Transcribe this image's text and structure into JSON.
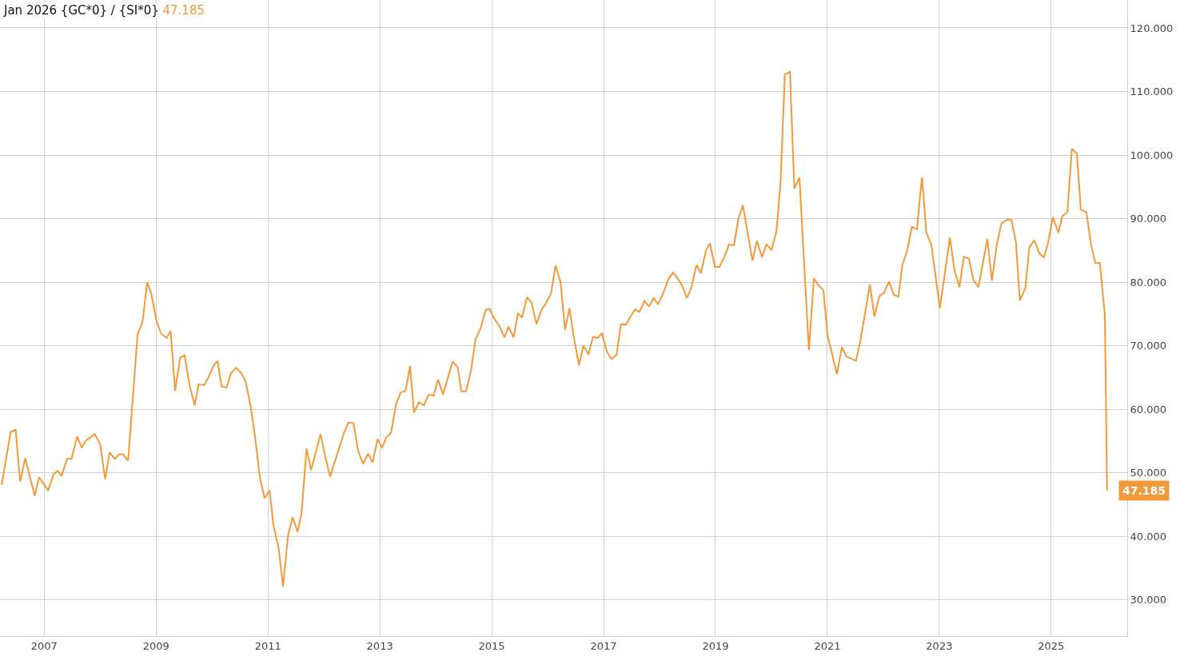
{
  "chart_data": {
    "type": "line",
    "title": "Jan 2026 {GC*0} / {SI*0}",
    "annotations": [
      "47.185",
      {
        "text": "47.185",
        "x": 2026.0,
        "y": 47.185
      }
    ],
    "xlim": [
      2006.21,
      2026.36
    ],
    "xticks": [
      2007,
      2009,
      2011,
      2013,
      2015,
      2017,
      2019,
      2021,
      2023,
      2025
    ],
    "ylim": [
      24.3,
      124.4
    ],
    "yticks": [
      {
        "value": 30,
        "label": "30.000"
      },
      {
        "value": 40,
        "label": "40.000"
      },
      {
        "value": 50,
        "label": "50.000"
      },
      {
        "value": 60,
        "label": "60.000"
      },
      {
        "value": 70,
        "label": "70.000"
      },
      {
        "value": 80,
        "label": "80.000"
      },
      {
        "value": 90,
        "label": "90.000"
      },
      {
        "value": 100,
        "label": "100.000"
      },
      {
        "value": 110,
        "label": "110.000"
      },
      {
        "value": 120,
        "label": "120.000"
      }
    ],
    "grid": true,
    "marker": "none",
    "line_style": "solid",
    "series": [
      {
        "color": "#f29a3a",
        "x": [
          2006.24,
          2006.4,
          2006.49,
          2006.57,
          2006.66,
          2006.83,
          2006.91,
          2007.07,
          2007.17,
          2007.24,
          2007.31,
          2007.41,
          2007.49,
          2007.59,
          2007.67,
          2007.74,
          2007.9,
          2008.0,
          2008.09,
          2008.17,
          2008.26,
          2008.34,
          2008.41,
          2008.5,
          2008.67,
          2008.76,
          2008.84,
          2008.91,
          2009.01,
          2009.09,
          2009.19,
          2009.26,
          2009.34,
          2009.43,
          2009.51,
          2009.6,
          2009.69,
          2009.76,
          2009.86,
          2009.93,
          2010.03,
          2010.1,
          2010.17,
          2010.26,
          2010.34,
          2010.43,
          2010.53,
          2010.6,
          2010.69,
          2010.77,
          2010.86,
          2010.94,
          2011.03,
          2011.1,
          2011.19,
          2011.27,
          2011.36,
          2011.44,
          2011.53,
          2011.6,
          2011.69,
          2011.77,
          2011.94,
          2012.03,
          2012.11,
          2012.36,
          2012.44,
          2012.53,
          2012.61,
          2012.7,
          2012.79,
          2012.87,
          2012.96,
          2013.04,
          2013.11,
          2013.2,
          2013.29,
          2013.37,
          2013.46,
          2013.54,
          2013.61,
          2013.7,
          2013.79,
          2013.87,
          2013.96,
          2014.04,
          2014.13,
          2014.3,
          2014.39,
          2014.46,
          2014.54,
          2014.63,
          2014.71,
          2014.8,
          2014.89,
          2014.96,
          2015.04,
          2015.13,
          2015.23,
          2015.3,
          2015.39,
          2015.47,
          2015.54,
          2015.63,
          2015.71,
          2015.8,
          2015.89,
          2015.97,
          2016.06,
          2016.14,
          2016.23,
          2016.31,
          2016.39,
          2016.47,
          2016.56,
          2016.64,
          2016.73,
          2016.81,
          2016.89,
          2016.97,
          2017.06,
          2017.14,
          2017.23,
          2017.31,
          2017.4,
          2017.47,
          2017.56,
          2017.64,
          2017.73,
          2017.81,
          2017.9,
          2017.97,
          2018.06,
          2018.16,
          2018.24,
          2018.33,
          2018.4,
          2018.49,
          2018.57,
          2018.66,
          2018.74,
          2018.83,
          2018.9,
          2018.99,
          2019.07,
          2019.17,
          2019.24,
          2019.33,
          2019.41,
          2019.49,
          2019.66,
          2019.74,
          2019.83,
          2019.91,
          2020.0,
          2020.09,
          2020.16,
          2020.24,
          2020.33,
          2020.41,
          2020.5,
          2020.67,
          2020.76,
          2020.84,
          2020.93,
          2021.0,
          2021.17,
          2021.26,
          2021.34,
          2021.51,
          2021.59,
          2021.76,
          2021.84,
          2021.93,
          2022.01,
          2022.1,
          2022.19,
          2022.27,
          2022.34,
          2022.43,
          2022.51,
          2022.6,
          2022.69,
          2022.77,
          2022.86,
          2023.01,
          2023.19,
          2023.27,
          2023.36,
          2023.44,
          2023.53,
          2023.61,
          2023.7,
          2023.86,
          2023.94,
          2024.03,
          2024.11,
          2024.2,
          2024.29,
          2024.37,
          2024.44,
          2024.54,
          2024.61,
          2024.7,
          2024.79,
          2024.87,
          2024.94,
          2025.03,
          2025.13,
          2025.2,
          2025.29,
          2025.37,
          2025.46,
          2025.53,
          2025.63,
          2025.71,
          2025.79,
          2025.87,
          2025.96,
          2026.0
        ],
        "values": [
          48.1,
          56.4,
          56.8,
          48.6,
          52.3,
          46.4,
          49.3,
          47.2,
          49.8,
          50.3,
          49.5,
          52.2,
          52.2,
          55.7,
          53.9,
          55.0,
          56.1,
          54.5,
          49.0,
          53.2,
          52.2,
          52.9,
          52.9,
          51.9,
          71.8,
          73.8,
          80.0,
          78.3,
          73.8,
          71.9,
          71.2,
          72.3,
          62.9,
          68.1,
          68.5,
          63.7,
          60.6,
          63.9,
          63.8,
          64.9,
          66.9,
          67.6,
          63.6,
          63.4,
          65.7,
          66.5,
          65.6,
          64.4,
          60.5,
          55.6,
          49.0,
          46.0,
          47.2,
          41.6,
          38.2,
          32.1,
          40.2,
          43.0,
          40.7,
          43.6,
          53.8,
          50.4,
          56.1,
          52.3,
          49.4,
          56.3,
          57.9,
          57.8,
          53.5,
          51.4,
          53.0,
          51.6,
          55.3,
          53.9,
          55.5,
          56.3,
          60.8,
          62.6,
          62.9,
          66.8,
          59.5,
          61.1,
          60.6,
          62.3,
          62.1,
          64.7,
          62.3,
          67.5,
          66.6,
          62.8,
          62.8,
          66.1,
          71.0,
          72.7,
          75.6,
          75.8,
          74.3,
          73.2,
          71.3,
          73.0,
          71.3,
          75.1,
          74.4,
          77.6,
          76.8,
          73.4,
          75.6,
          76.7,
          78.2,
          82.6,
          80.0,
          72.5,
          75.9,
          71.2,
          66.9,
          70.0,
          68.6,
          71.4,
          71.2,
          71.9,
          69.0,
          67.9,
          68.5,
          73.4,
          73.3,
          74.4,
          75.7,
          75.3,
          77.0,
          76.2,
          77.5,
          76.5,
          78.1,
          80.5,
          81.5,
          80.5,
          79.5,
          77.5,
          79.2,
          82.7,
          81.4,
          85.0,
          86.1,
          82.4,
          82.4,
          84.2,
          85.9,
          85.8,
          90.0,
          92.1,
          83.4,
          86.5,
          83.9,
          86.0,
          85.0,
          88.0,
          95.2,
          112.7,
          113.1,
          94.7,
          96.5,
          69.3,
          80.6,
          79.5,
          78.7,
          71.8,
          65.5,
          69.8,
          68.3,
          67.6,
          70.8,
          79.6,
          74.6,
          77.8,
          78.3,
          80.1,
          78.0,
          77.7,
          82.7,
          85.1,
          88.7,
          88.3,
          96.5,
          87.8,
          85.8,
          75.9,
          87.0,
          82.0,
          79.2,
          84.0,
          83.7,
          80.3,
          79.2,
          86.8,
          80.2,
          86.0,
          89.2,
          89.8,
          89.8,
          86.3,
          77.1,
          79.1,
          85.5,
          86.6,
          84.5,
          83.9,
          86.0,
          90.2,
          87.8,
          90.4,
          91.0,
          101.0,
          100.2,
          91.4,
          91.0,
          86.0,
          83.0,
          83.0,
          74.8,
          47.185
        ]
      }
    ]
  }
}
